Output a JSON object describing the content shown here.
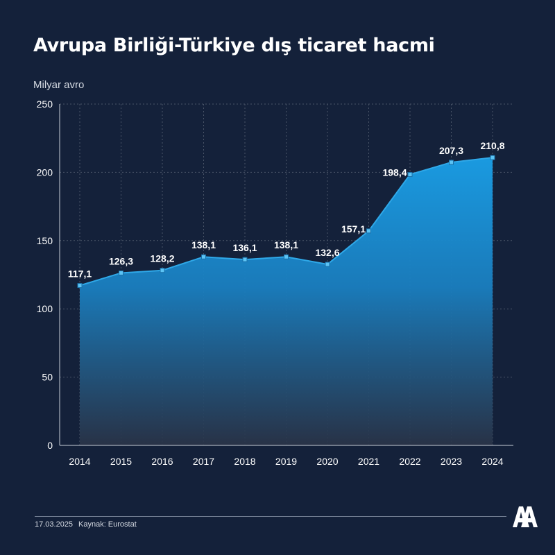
{
  "title": "Avrupa Birliği-Türkiye dış ticaret hacmi",
  "unit_label": "Milyar avro",
  "footer": {
    "date": "17.03.2025",
    "source": "Kaynak: Eurostat"
  },
  "logo": {
    "text": "AA",
    "name": "aa-logo"
  },
  "colors": {
    "background": "#14213a",
    "line": "#2fa8e8",
    "area_top": "#1a9ae0",
    "area_bottom": "#2a3448",
    "grid": "#4a5568",
    "text": "#ffffff"
  },
  "chart_data": {
    "type": "area",
    "x": [
      "2014",
      "2015",
      "2016",
      "2017",
      "2018",
      "2019",
      "2020",
      "2021",
      "2022",
      "2023",
      "2024"
    ],
    "values": [
      117.1,
      126.3,
      128.2,
      138.1,
      136.1,
      138.1,
      132.6,
      157.1,
      198.4,
      207.3,
      210.8
    ],
    "value_labels": [
      "117,1",
      "126,3",
      "128,2",
      "138,1",
      "136,1",
      "138,1",
      "132,6",
      "157,1",
      "198,4",
      "207,3",
      "210,8"
    ],
    "yticks": [
      0,
      50,
      100,
      150,
      200,
      250
    ],
    "ylim": [
      0,
      250
    ],
    "grid": true,
    "legend": "none"
  }
}
